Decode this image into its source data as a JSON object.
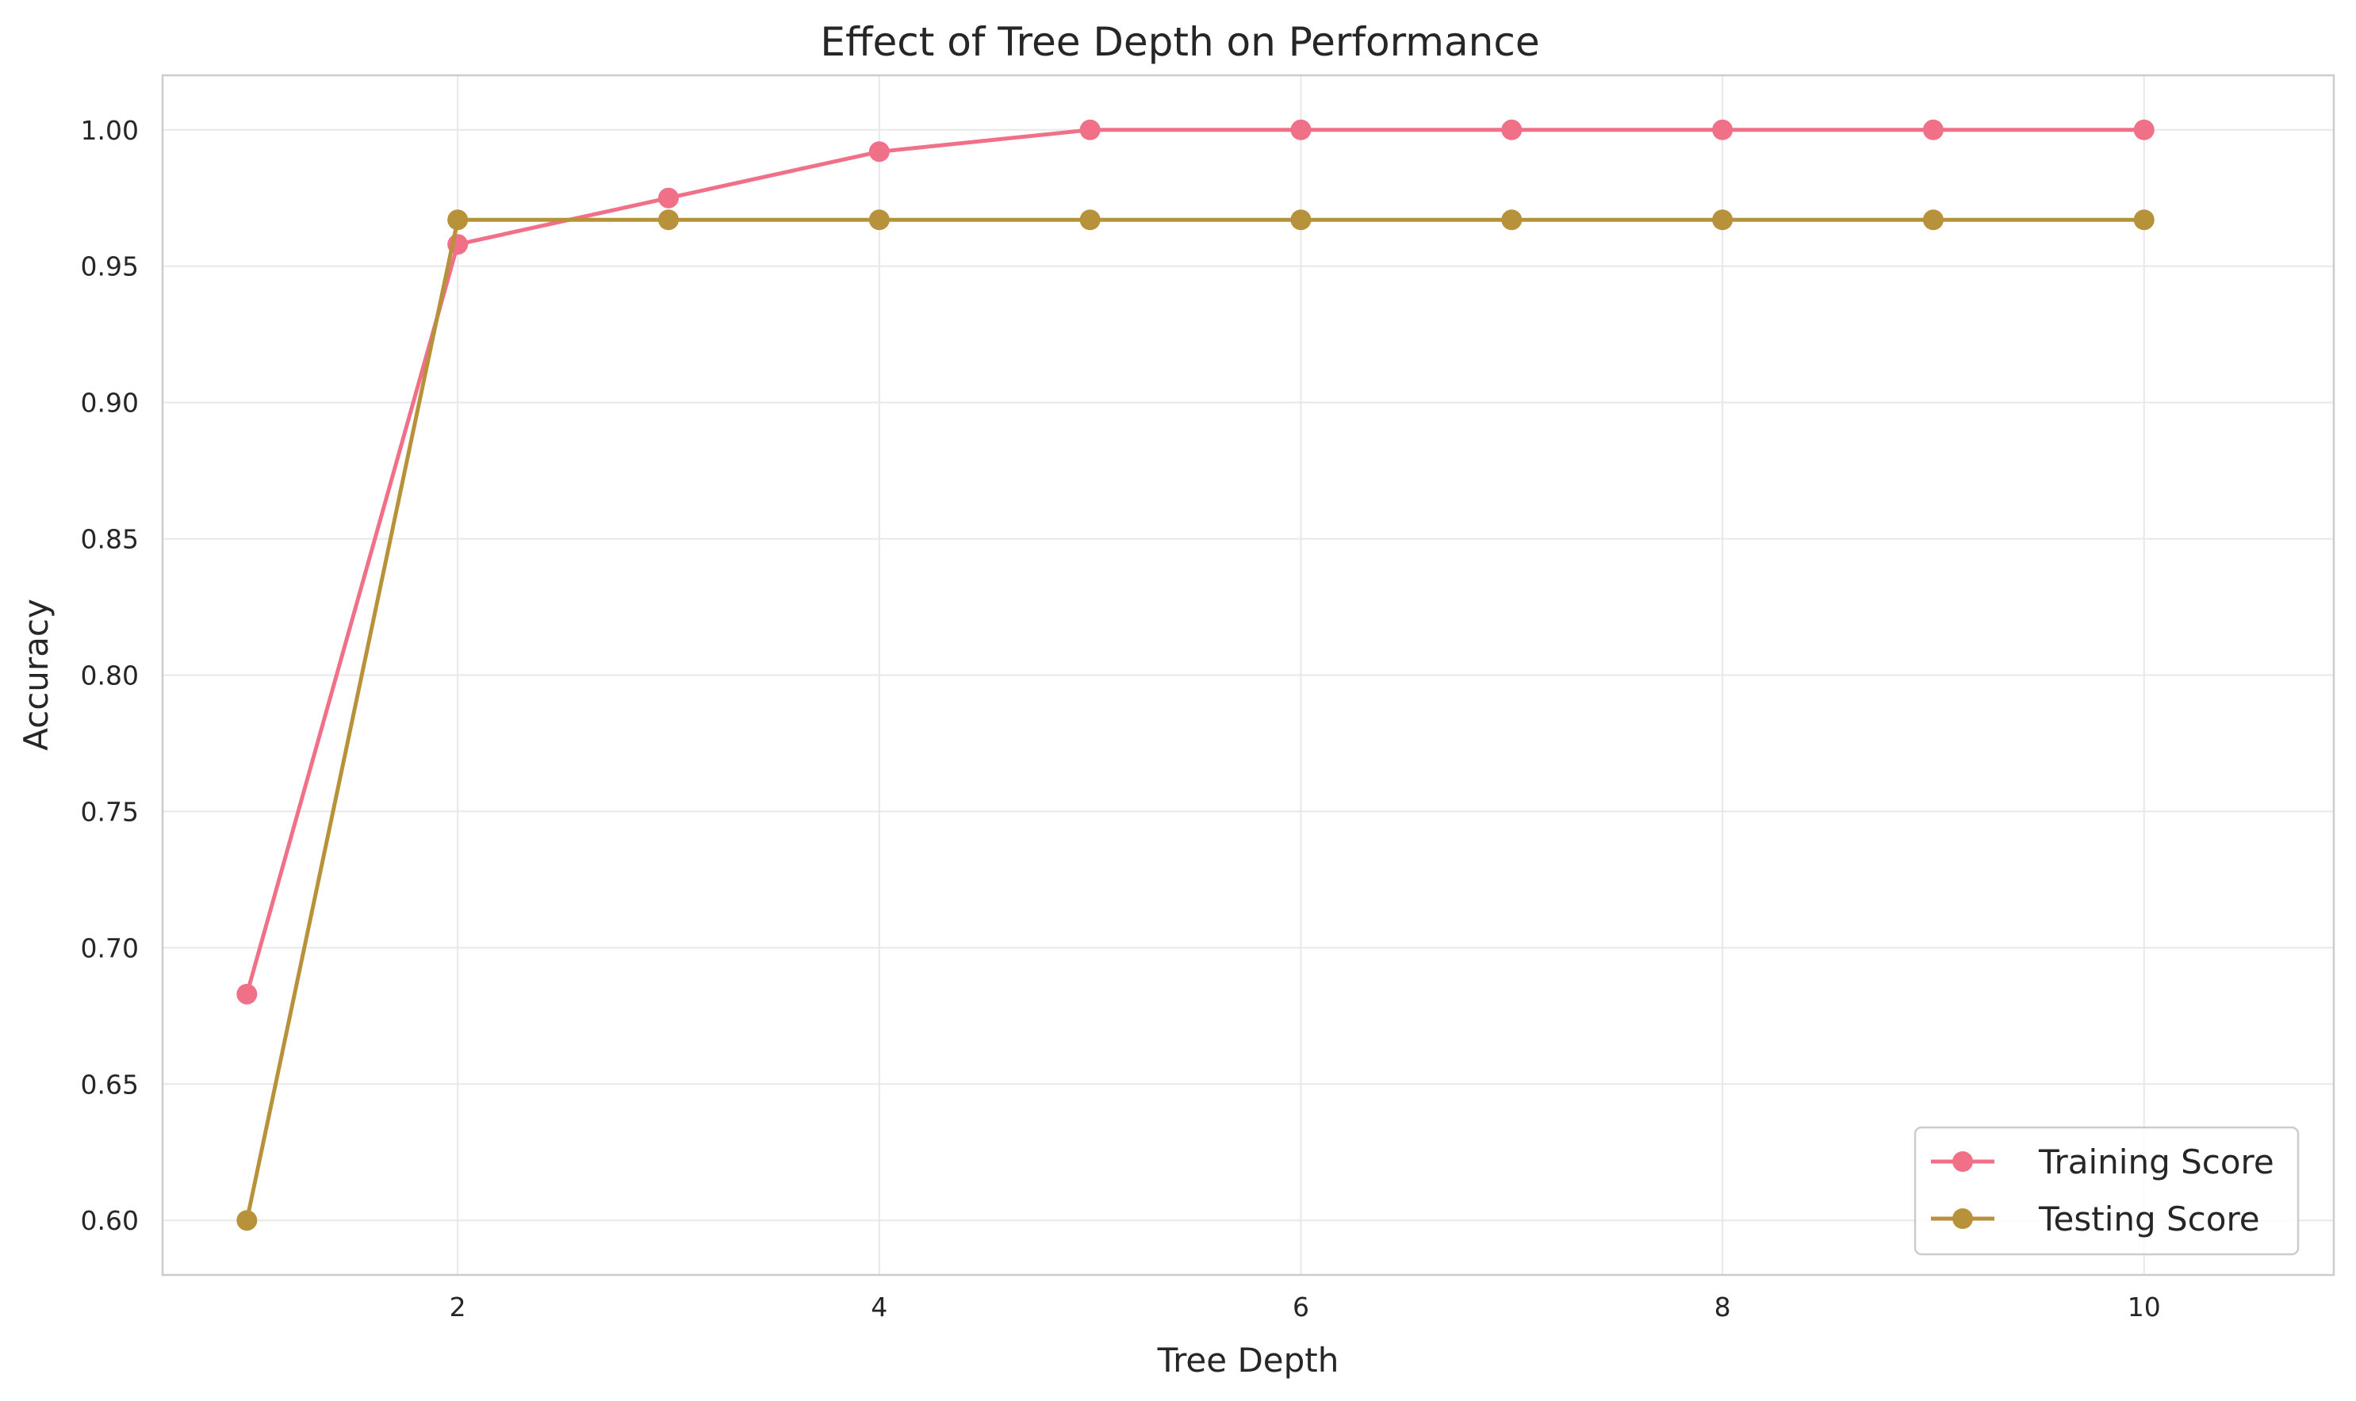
{
  "chart_data": {
    "type": "line",
    "title": "Effect of Tree Depth on Performance",
    "xlabel": "Tree Depth",
    "ylabel": "Accuracy",
    "xlim": [
      0.6,
      10.9
    ],
    "ylim": [
      0.58,
      1.02
    ],
    "xticks": [
      2,
      4,
      6,
      8,
      10
    ],
    "yticks": [
      0.6,
      0.65,
      0.7,
      0.75,
      0.8,
      0.85,
      0.9,
      0.95,
      1.0
    ],
    "x": [
      1,
      2,
      3,
      4,
      5,
      6,
      7,
      8,
      9,
      10
    ],
    "series": [
      {
        "name": "Training Score",
        "color": "#f07088",
        "values": [
          0.683,
          0.958,
          0.975,
          0.992,
          1.0,
          1.0,
          1.0,
          1.0,
          1.0,
          1.0
        ]
      },
      {
        "name": "Testing Score",
        "color": "#b8923a",
        "values": [
          0.6,
          0.967,
          0.967,
          0.967,
          0.967,
          0.967,
          0.967,
          0.967,
          0.967,
          0.967
        ]
      }
    ],
    "grid": true,
    "legend": "lower-right"
  }
}
